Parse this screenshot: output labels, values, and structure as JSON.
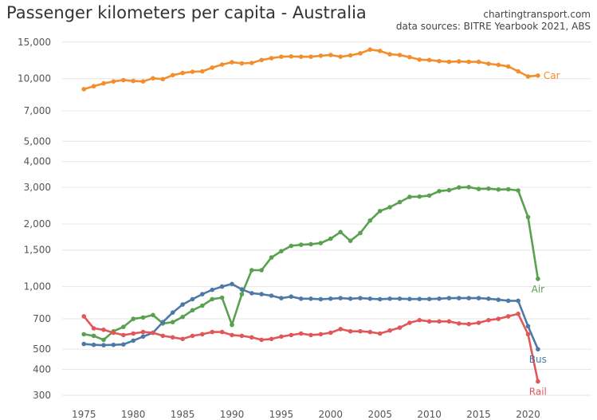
{
  "header": {
    "title": "Passenger kilometers per capita - Australia",
    "site": "chartingtransport.com",
    "sources": "data sources: BITRE Yearbook 2021, ABS"
  },
  "chart_data": {
    "type": "line",
    "title": "Passenger kilometers per capita - Australia",
    "xlabel": "",
    "ylabel": "",
    "yscale": "log",
    "xlim": [
      1972.8,
      2024
    ],
    "ylim": [
      270,
      16500
    ],
    "grid": "horizontal",
    "legend": "inline labels at series ends",
    "x_ticks": [
      1975,
      1980,
      1985,
      1990,
      1995,
      2000,
      2005,
      2010,
      2015,
      2020
    ],
    "y_ticks": [
      300,
      400,
      500,
      700,
      1000,
      1500,
      2000,
      3000,
      4000,
      5000,
      7000,
      10000,
      15000
    ],
    "y_tick_labels": [
      "300",
      "400",
      "500",
      "700",
      "1,000",
      "1,500",
      "2,000",
      "3,000",
      "4,000",
      "5,000",
      "7,000",
      "10,000",
      "15,000"
    ],
    "x": [
      1975,
      1976,
      1977,
      1978,
      1979,
      1980,
      1981,
      1982,
      1983,
      1984,
      1985,
      1986,
      1987,
      1988,
      1989,
      1990,
      1991,
      1992,
      1993,
      1994,
      1995,
      1996,
      1997,
      1998,
      1999,
      2000,
      2001,
      2002,
      2003,
      2004,
      2005,
      2006,
      2007,
      2008,
      2009,
      2010,
      2011,
      2012,
      2013,
      2014,
      2015,
      2016,
      2017,
      2018,
      2019,
      2020,
      2021
    ],
    "series": [
      {
        "name": "Car",
        "color": "#f28e2b",
        "values": [
          8900,
          9200,
          9500,
          9700,
          9850,
          9750,
          9700,
          10050,
          9950,
          10400,
          10650,
          10800,
          10850,
          11300,
          11700,
          12000,
          11850,
          11900,
          12300,
          12550,
          12750,
          12800,
          12750,
          12750,
          12900,
          13000,
          12750,
          12950,
          13250,
          13800,
          13600,
          13100,
          13000,
          12700,
          12350,
          12300,
          12150,
          12050,
          12100,
          12050,
          12050,
          11800,
          11650,
          11450,
          10850,
          10250,
          10350
        ]
      },
      {
        "name": "Air",
        "color": "#59a14f",
        "values": [
          590,
          580,
          555,
          610,
          640,
          700,
          710,
          730,
          665,
          675,
          715,
          770,
          810,
          870,
          885,
          655,
          920,
          1200,
          1200,
          1380,
          1480,
          1570,
          1590,
          1600,
          1620,
          1700,
          1830,
          1660,
          1810,
          2080,
          2310,
          2410,
          2550,
          2700,
          2710,
          2740,
          2880,
          2910,
          3000,
          3010,
          2950,
          2960,
          2930,
          2940,
          2900,
          2160,
          1090
        ]
      },
      {
        "name": "Bus",
        "color": "#4e79a7",
        "values": [
          530,
          525,
          523,
          525,
          527,
          550,
          575,
          600,
          675,
          750,
          820,
          870,
          920,
          965,
          1000,
          1030,
          970,
          930,
          920,
          905,
          880,
          895,
          875,
          875,
          870,
          875,
          880,
          875,
          880,
          875,
          870,
          875,
          875,
          872,
          872,
          872,
          875,
          880,
          880,
          880,
          880,
          875,
          865,
          855,
          855,
          645,
          500
        ]
      },
      {
        "name": "Rail",
        "color": "#e15759",
        "values": [
          720,
          630,
          620,
          600,
          585,
          595,
          605,
          600,
          580,
          570,
          560,
          580,
          590,
          605,
          605,
          585,
          580,
          570,
          555,
          560,
          575,
          585,
          595,
          585,
          590,
          600,
          625,
          610,
          610,
          605,
          595,
          615,
          635,
          670,
          690,
          680,
          680,
          680,
          665,
          660,
          670,
          690,
          700,
          720,
          740,
          590,
          350
        ]
      }
    ]
  }
}
